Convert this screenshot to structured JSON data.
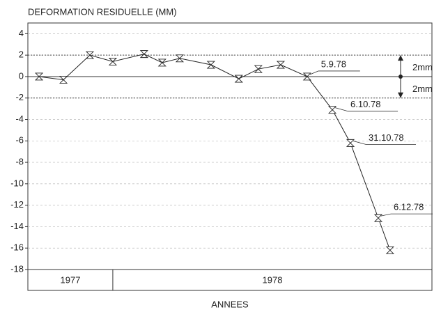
{
  "chart_data": {
    "type": "line",
    "title": "DEFORMATION RESIDUELLE (MM)",
    "xlabel": "ANNEES",
    "series": [
      {
        "color": "#222222",
        "x": [
          1977.743,
          1977.828,
          1977.92,
          1978.0,
          1978.109,
          1978.172,
          1978.233,
          1978.342,
          1978.439,
          1978.507,
          1978.585,
          1978.677,
          1978.765,
          1978.828,
          1978.925,
          1978.966
        ],
        "values": [
          0,
          -0.3,
          2,
          1.4,
          2.1,
          1.3,
          1.7,
          1.1,
          -0.2,
          0.7,
          1.1,
          0,
          -3.1,
          -6.2,
          -13.2,
          -16.2
        ]
      }
    ],
    "xlim": [
      1977.704,
      1979.112
    ],
    "ylim": [
      -18,
      5
    ],
    "yticks": [
      -18,
      -16,
      -14,
      -12,
      -10,
      -8,
      -6,
      -4,
      -2,
      0,
      2,
      4
    ],
    "grid": true,
    "years": [
      "1977",
      "1978"
    ],
    "year_divider": 1978,
    "reference_lines": [
      2,
      -2
    ],
    "band_labels": [
      "2mm",
      "2mm"
    ],
    "annotations": [
      {
        "text": "5.9.78",
        "point": 11
      },
      {
        "text": "6.10.78",
        "point": 12
      },
      {
        "text": "31.10.78",
        "point": 13
      },
      {
        "text": "6.12.78",
        "point": 14
      }
    ]
  }
}
